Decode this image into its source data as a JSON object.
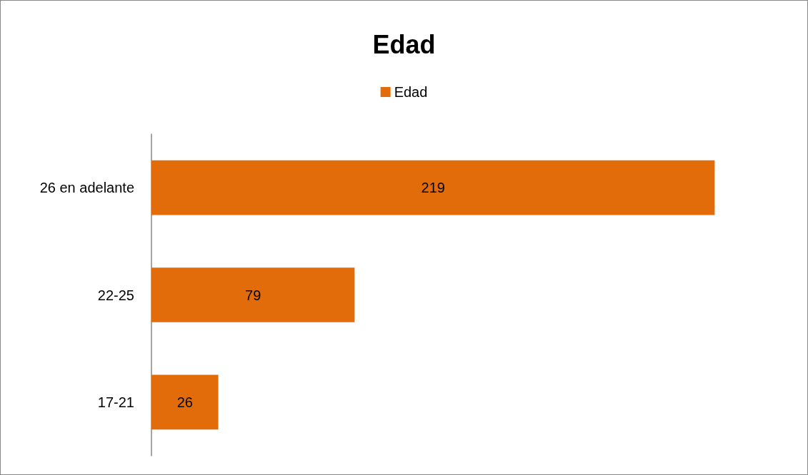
{
  "chart_data": {
    "type": "bar",
    "title": "Edad",
    "orientation": "horizontal",
    "categories": [
      "26 en adelante",
      "22-25",
      "17-21"
    ],
    "series": [
      {
        "name": "Edad",
        "color": "#e36c0a",
        "values": [
          219,
          79,
          26
        ]
      }
    ],
    "data_labels": true,
    "legend": "top",
    "grid": false
  }
}
